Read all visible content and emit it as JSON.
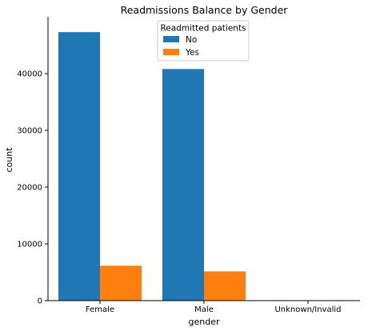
{
  "chart_data": {
    "type": "bar",
    "title": "Readmissions Balance by Gender",
    "xlabel": "gender",
    "ylabel": "count",
    "categories": [
      "Female",
      "Male",
      "Unknown/Invalid"
    ],
    "series": [
      {
        "name": "No",
        "color": "#1f77b4",
        "values": [
          47300,
          40800,
          3
        ]
      },
      {
        "name": "Yes",
        "color": "#ff7f0e",
        "values": [
          6150,
          5150,
          0
        ]
      }
    ],
    "ylim": [
      0,
      50000
    ],
    "yticks": [
      0,
      10000,
      20000,
      30000,
      40000
    ],
    "grid": false,
    "legend": {
      "title": "Readmitted patients",
      "placement": "top-center"
    }
  }
}
